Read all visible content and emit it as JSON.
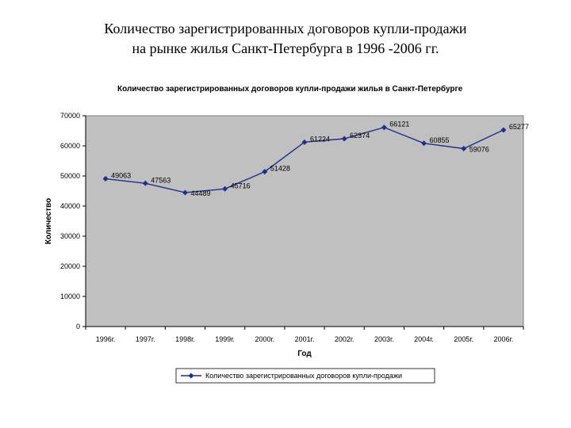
{
  "slide": {
    "title_line1": "Количество зарегистрированных договоров купли-продажи",
    "title_line2": "на рынке жилья Санкт-Петербурга в 1996 -2006 гг."
  },
  "colors": {
    "plot_bg": "#c0c0c0",
    "series_line": "#1f2f8c",
    "marker": "#1f2f8c"
  },
  "chart_data": {
    "type": "line",
    "title": "Количество зарегистрированных договоров купли-продажи жилья в Санкт-Петербурге",
    "xlabel": "Год",
    "ylabel": "Количество",
    "categories": [
      "1996г.",
      "1997г.",
      "1998г.",
      "1999г.",
      "2000г.",
      "2001г.",
      "2002г.",
      "2003г.",
      "2004г.",
      "2005г.",
      "2006г."
    ],
    "series": [
      {
        "name": "Количество зарегистрированных договоров купли-продажи",
        "values": [
          49063,
          47563,
          44489,
          45716,
          51428,
          61224,
          62374,
          66121,
          60855,
          59076,
          65277
        ]
      }
    ],
    "ylim": [
      0,
      70000
    ],
    "yticks": [
      0,
      10000,
      20000,
      30000,
      40000,
      50000,
      60000,
      70000
    ],
    "grid": false,
    "legend": "bottom",
    "data_labels": true
  }
}
